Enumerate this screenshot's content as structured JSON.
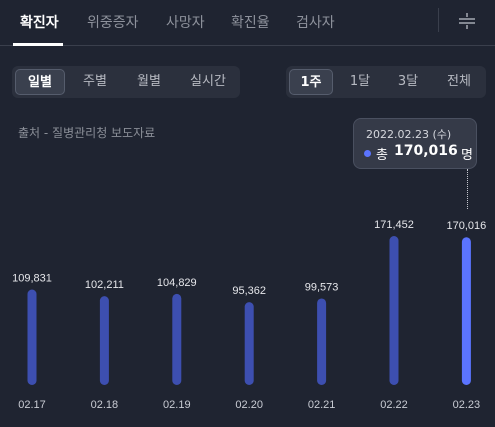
{
  "tabs": [
    {
      "label": "확진자"
    },
    {
      "label": "위중증자"
    },
    {
      "label": "사망자"
    },
    {
      "label": "확진율"
    },
    {
      "label": "검사자"
    }
  ],
  "period_tabs": [
    {
      "label": "일별"
    },
    {
      "label": "주별"
    },
    {
      "label": "월별"
    },
    {
      "label": "실시간"
    }
  ],
  "range_tabs": [
    {
      "label": "1주"
    },
    {
      "label": "1달"
    },
    {
      "label": "3달"
    },
    {
      "label": "전체"
    }
  ],
  "source_text": "출처 - 질병관리청 보도자료",
  "tooltip": {
    "date": "2022.02.23 (수)",
    "label": "총",
    "value": "170,016",
    "unit": "명"
  },
  "colors": {
    "bar": "#3d4fb0",
    "bar_highlight": "#5b74ff",
    "background": "#1f2431"
  },
  "icons": {
    "filter": "filter-adjust-icon"
  },
  "chart_data": {
    "type": "bar",
    "categories": [
      "02.17",
      "02.18",
      "02.19",
      "02.20",
      "02.21",
      "02.22",
      "02.23"
    ],
    "values": [
      109831,
      102211,
      104829,
      95362,
      99573,
      171452,
      170016
    ],
    "value_labels": [
      "109,831",
      "102,211",
      "104,829",
      "95,362",
      "99,573",
      "171,452",
      "170,016"
    ],
    "highlight_index": 6
  }
}
